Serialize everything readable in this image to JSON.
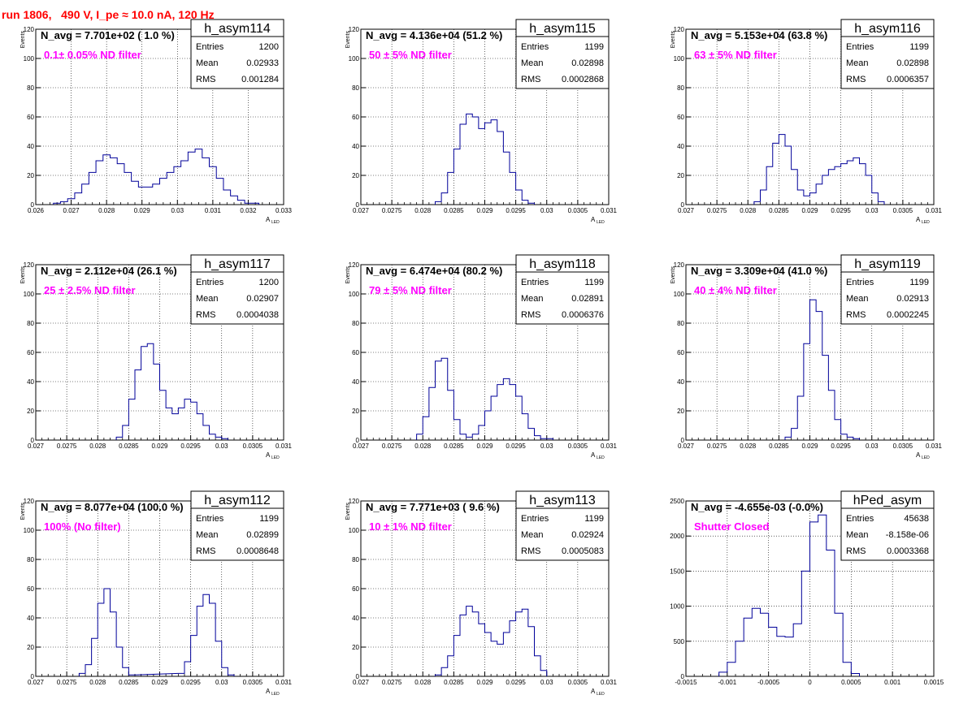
{
  "page": {
    "title": "run 1806,   490 V, I_pe ≈ 10.0 nA, 120 Hz"
  },
  "colors": {
    "title": "#ff0000",
    "histogram_line": "#000099",
    "filter_label": "#ff00ff",
    "grid": "#000000"
  },
  "stat_labels": {
    "entries": "Entries",
    "mean": "Mean",
    "rms": "RMS"
  },
  "chart_data": [
    {
      "type": "histogram",
      "name": "h_asym114",
      "navg": "N_avg = 7.701e+02 ( 1.0 %)",
      "filter": "0.1± 0.05% ND filter",
      "stats": {
        "entries": "1200",
        "mean": "0.02933",
        "rms": "0.001284"
      },
      "xlabel": "A",
      "xlabel_sub": "LED",
      "ylabel": "Events",
      "xlim": [
        0.026,
        0.033
      ],
      "ylim": [
        0,
        120
      ],
      "xticks": [
        0.026,
        0.027,
        0.028,
        0.029,
        0.03,
        0.031,
        0.032,
        0.033
      ],
      "xtick_labels": [
        "0.026",
        "0.027",
        "0.028",
        "0.029",
        "0.03",
        "0.031",
        "0.032",
        "0.033"
      ],
      "yticks": [
        0,
        20,
        40,
        60,
        80,
        100,
        120
      ],
      "ytick_labels": [
        "0",
        "20",
        "40",
        "60",
        "80",
        "100",
        "120"
      ],
      "x": [
        0.0266,
        0.0268,
        0.027,
        0.0272,
        0.0274,
        0.0276,
        0.0278,
        0.028,
        0.0282,
        0.0284,
        0.0286,
        0.0288,
        0.029,
        0.0292,
        0.0294,
        0.0296,
        0.0298,
        0.03,
        0.0302,
        0.0304,
        0.0306,
        0.0308,
        0.031,
        0.0312,
        0.0314,
        0.0316,
        0.0318,
        0.032,
        0.0322
      ],
      "values": [
        1,
        2,
        4,
        8,
        14,
        22,
        30,
        34,
        32,
        28,
        22,
        16,
        12,
        12,
        14,
        18,
        22,
        26,
        30,
        36,
        38,
        32,
        26,
        18,
        10,
        6,
        3,
        1,
        1
      ]
    },
    {
      "type": "histogram",
      "name": "h_asym115",
      "navg": "N_avg = 4.136e+04 (51.2 %)",
      "filter": "50 ± 5% ND filter",
      "stats": {
        "entries": "1199",
        "mean": "0.02898",
        "rms": "0.0002868"
      },
      "xlabel": "A",
      "xlabel_sub": "LED",
      "ylabel": "Events",
      "xlim": [
        0.027,
        0.031
      ],
      "ylim": [
        0,
        120
      ],
      "xticks": [
        0.027,
        0.0275,
        0.028,
        0.0285,
        0.029,
        0.0295,
        0.03,
        0.0305,
        0.031
      ],
      "xtick_labels": [
        "0.027",
        "0.0275",
        "0.028",
        "0.0285",
        "0.029",
        "0.0295",
        "0.03",
        "0.0305",
        "0.031"
      ],
      "yticks": [
        0,
        20,
        40,
        60,
        80,
        100,
        120
      ],
      "ytick_labels": [
        "0",
        "20",
        "40",
        "60",
        "80",
        "100",
        "120"
      ],
      "x": [
        0.02825,
        0.02835,
        0.02845,
        0.02855,
        0.02865,
        0.02875,
        0.02885,
        0.02895,
        0.02905,
        0.02915,
        0.02925,
        0.02935,
        0.02945,
        0.02955,
        0.02965,
        0.02975
      ],
      "values": [
        2,
        8,
        22,
        38,
        55,
        62,
        60,
        52,
        56,
        58,
        50,
        36,
        22,
        10,
        3,
        1
      ]
    },
    {
      "type": "histogram",
      "name": "h_asym116",
      "navg": "N_avg = 5.153e+04 (63.8 %)",
      "filter": "63 ± 5% ND filter",
      "stats": {
        "entries": "1199",
        "mean": "0.02898",
        "rms": "0.0006357"
      },
      "xlabel": "A",
      "xlabel_sub": "LED",
      "ylabel": "Events",
      "xlim": [
        0.027,
        0.031
      ],
      "ylim": [
        0,
        120
      ],
      "xticks": [
        0.027,
        0.0275,
        0.028,
        0.0285,
        0.029,
        0.0295,
        0.03,
        0.0305,
        0.031
      ],
      "xtick_labels": [
        "0.027",
        "0.0275",
        "0.028",
        "0.0285",
        "0.029",
        "0.0295",
        "0.03",
        "0.0305",
        "0.031"
      ],
      "yticks": [
        0,
        20,
        40,
        60,
        80,
        100,
        120
      ],
      "ytick_labels": [
        "0",
        "20",
        "40",
        "60",
        "80",
        "100",
        "120"
      ],
      "x": [
        0.02815,
        0.02825,
        0.02835,
        0.02845,
        0.02855,
        0.02865,
        0.02875,
        0.02885,
        0.02895,
        0.02905,
        0.02915,
        0.02925,
        0.02935,
        0.02945,
        0.02955,
        0.02965,
        0.02975,
        0.02985,
        0.02995,
        0.03005,
        0.03015
      ],
      "values": [
        2,
        10,
        26,
        42,
        48,
        40,
        24,
        10,
        6,
        8,
        14,
        20,
        24,
        26,
        28,
        30,
        32,
        28,
        20,
        8,
        2
      ]
    },
    {
      "type": "histogram",
      "name": "h_asym117",
      "navg": "N_avg = 2.112e+04 (26.1 %)",
      "filter": "25 ± 2.5% ND filter",
      "stats": {
        "entries": "1200",
        "mean": "0.02907",
        "rms": "0.0004038"
      },
      "xlabel": "A",
      "xlabel_sub": "LED",
      "ylabel": "Events",
      "xlim": [
        0.027,
        0.031
      ],
      "ylim": [
        0,
        120
      ],
      "xticks": [
        0.027,
        0.0275,
        0.028,
        0.0285,
        0.029,
        0.0295,
        0.03,
        0.0305,
        0.031
      ],
      "xtick_labels": [
        "0.027",
        "0.0275",
        "0.028",
        "0.0285",
        "0.029",
        "0.0295",
        "0.03",
        "0.0305",
        "0.031"
      ],
      "yticks": [
        0,
        20,
        40,
        60,
        80,
        100,
        120
      ],
      "ytick_labels": [
        "0",
        "20",
        "40",
        "60",
        "80",
        "100",
        "120"
      ],
      "x": [
        0.02835,
        0.02845,
        0.02855,
        0.02865,
        0.02875,
        0.02885,
        0.02895,
        0.02905,
        0.02915,
        0.02925,
        0.02935,
        0.02945,
        0.02955,
        0.02965,
        0.02975,
        0.02985,
        0.02995,
        0.03005
      ],
      "values": [
        2,
        10,
        28,
        48,
        64,
        66,
        52,
        34,
        22,
        18,
        22,
        28,
        26,
        18,
        10,
        4,
        2,
        1
      ]
    },
    {
      "type": "histogram",
      "name": "h_asym118",
      "navg": "N_avg = 6.474e+04 (80.2 %)",
      "filter": "79 ± 5% ND filter",
      "stats": {
        "entries": "1199",
        "mean": "0.02891",
        "rms": "0.0006376"
      },
      "xlabel": "A",
      "xlabel_sub": "LED",
      "ylabel": "Events",
      "xlim": [
        0.027,
        0.031
      ],
      "ylim": [
        0,
        120
      ],
      "xticks": [
        0.027,
        0.0275,
        0.028,
        0.0285,
        0.029,
        0.0295,
        0.03,
        0.0305,
        0.031
      ],
      "xtick_labels": [
        "0.027",
        "0.0275",
        "0.028",
        "0.0285",
        "0.029",
        "0.0295",
        "0.03",
        "0.0305",
        "0.031"
      ],
      "yticks": [
        0,
        20,
        40,
        60,
        80,
        100,
        120
      ],
      "ytick_labels": [
        "0",
        "20",
        "40",
        "60",
        "80",
        "100",
        "120"
      ],
      "x": [
        0.02795,
        0.02805,
        0.02815,
        0.02825,
        0.02835,
        0.02845,
        0.02855,
        0.02865,
        0.02875,
        0.02885,
        0.02895,
        0.02905,
        0.02915,
        0.02925,
        0.02935,
        0.02945,
        0.02955,
        0.02965,
        0.02975,
        0.02985,
        0.02995,
        0.03005
      ],
      "values": [
        4,
        16,
        36,
        54,
        56,
        34,
        14,
        4,
        2,
        4,
        10,
        20,
        30,
        38,
        42,
        38,
        30,
        18,
        8,
        3,
        1,
        1
      ]
    },
    {
      "type": "histogram",
      "name": "h_asym119",
      "navg": "N_avg = 3.309e+04 (41.0 %)",
      "filter": "40 ± 4% ND filter",
      "stats": {
        "entries": "1199",
        "mean": "0.02913",
        "rms": "0.0002245"
      },
      "xlabel": "A",
      "xlabel_sub": "LED",
      "ylabel": "Events",
      "xlim": [
        0.027,
        0.031
      ],
      "ylim": [
        0,
        120
      ],
      "xticks": [
        0.027,
        0.0275,
        0.028,
        0.0285,
        0.029,
        0.0295,
        0.03,
        0.0305,
        0.031
      ],
      "xtick_labels": [
        "0.027",
        "0.0275",
        "0.028",
        "0.0285",
        "0.029",
        "0.0295",
        "0.03",
        "0.0305",
        "0.031"
      ],
      "yticks": [
        0,
        20,
        40,
        60,
        80,
        100,
        120
      ],
      "ytick_labels": [
        "0",
        "20",
        "40",
        "60",
        "80",
        "100",
        "120"
      ],
      "x": [
        0.02865,
        0.02875,
        0.02885,
        0.02895,
        0.02905,
        0.02915,
        0.02925,
        0.02935,
        0.02945,
        0.02955,
        0.02965,
        0.02975
      ],
      "values": [
        2,
        8,
        30,
        66,
        96,
        88,
        58,
        34,
        14,
        4,
        2,
        1
      ]
    },
    {
      "type": "histogram",
      "name": "h_asym112",
      "navg": "N_avg = 8.077e+04 (100.0 %)",
      "filter": "100% (No filter)",
      "stats": {
        "entries": "1199",
        "mean": "0.02899",
        "rms": "0.0008648"
      },
      "xlabel": "A",
      "xlabel_sub": "LED",
      "ylabel": "Events",
      "xlim": [
        0.027,
        0.031
      ],
      "ylim": [
        0,
        120
      ],
      "xticks": [
        0.027,
        0.0275,
        0.028,
        0.0285,
        0.029,
        0.0295,
        0.03,
        0.0305,
        0.031
      ],
      "xtick_labels": [
        "0.027",
        "0.0275",
        "0.028",
        "0.0285",
        "0.029",
        "0.0295",
        "0.03",
        "0.0305",
        "0.031"
      ],
      "yticks": [
        0,
        20,
        40,
        60,
        80,
        100,
        120
      ],
      "ytick_labels": [
        "0",
        "20",
        "40",
        "60",
        "80",
        "100",
        "120"
      ],
      "x": [
        0.02775,
        0.02785,
        0.02795,
        0.02805,
        0.02815,
        0.02825,
        0.02835,
        0.02845,
        0.02855,
        0.02935,
        0.02945,
        0.02955,
        0.02965,
        0.02975,
        0.02985,
        0.02995,
        0.03005,
        0.03015
      ],
      "values": [
        2,
        8,
        26,
        50,
        60,
        44,
        20,
        6,
        1,
        2,
        10,
        28,
        48,
        56,
        50,
        24,
        6,
        1
      ]
    },
    {
      "type": "histogram",
      "name": "h_asym113",
      "navg": "N_avg = 7.771e+03 ( 9.6 %)",
      "filter": "10 ± 1% ND filter",
      "stats": {
        "entries": "1199",
        "mean": "0.02924",
        "rms": "0.0005083"
      },
      "xlabel": "A",
      "xlabel_sub": "LED",
      "ylabel": "Events",
      "xlim": [
        0.027,
        0.031
      ],
      "ylim": [
        0,
        120
      ],
      "xticks": [
        0.027,
        0.0275,
        0.028,
        0.0285,
        0.029,
        0.0295,
        0.03,
        0.0305,
        0.031
      ],
      "xtick_labels": [
        "0.027",
        "0.0275",
        "0.028",
        "0.0285",
        "0.029",
        "0.0295",
        "0.03",
        "0.0305",
        "0.031"
      ],
      "yticks": [
        0,
        20,
        40,
        60,
        80,
        100,
        120
      ],
      "ytick_labels": [
        "0",
        "20",
        "40",
        "60",
        "80",
        "100",
        "120"
      ],
      "x": [
        0.02825,
        0.02835,
        0.02845,
        0.02855,
        0.02865,
        0.02875,
        0.02885,
        0.02895,
        0.02905,
        0.02915,
        0.02925,
        0.02935,
        0.02945,
        0.02955,
        0.02965,
        0.02975,
        0.02985,
        0.02995
      ],
      "values": [
        1,
        6,
        14,
        28,
        42,
        48,
        44,
        36,
        30,
        24,
        22,
        30,
        38,
        44,
        46,
        34,
        14,
        4
      ]
    },
    {
      "type": "histogram",
      "name": "hPed_asym",
      "navg": "N_avg = -4.655e-03 (-0.0%)",
      "filter": "Shutter Closed",
      "stats": {
        "entries": "45638",
        "mean": "-8.158e-06",
        "rms": "0.0003368"
      },
      "xlabel": "",
      "xlabel_sub": "",
      "ylabel": "",
      "xlim": [
        -0.0015,
        0.0015
      ],
      "ylim": [
        0,
        2500
      ],
      "xticks": [
        -0.0015,
        -0.001,
        -0.0005,
        0,
        0.0005,
        0.001,
        0.0015
      ],
      "xtick_labels": [
        "-0.0015",
        "-0.001",
        "-0.0005",
        "0",
        "0.0005",
        "0.001",
        "0.0015"
      ],
      "yticks": [
        0,
        500,
        1000,
        1500,
        2000,
        2500
      ],
      "ytick_labels": [
        "0",
        "500",
        "1000",
        "1500",
        "2000",
        "2500"
      ],
      "x": [
        -0.00105,
        -0.00095,
        -0.00085,
        -0.00075,
        -0.00065,
        -0.00055,
        -0.00045,
        -0.00035,
        -0.00025,
        -0.00015,
        -5e-05,
        5e-05,
        0.00015,
        0.00025,
        0.00035,
        0.00045,
        0.00055
      ],
      "values": [
        60,
        200,
        500,
        830,
        970,
        900,
        700,
        570,
        560,
        750,
        1500,
        2200,
        2300,
        1800,
        900,
        200,
        40
      ]
    }
  ]
}
